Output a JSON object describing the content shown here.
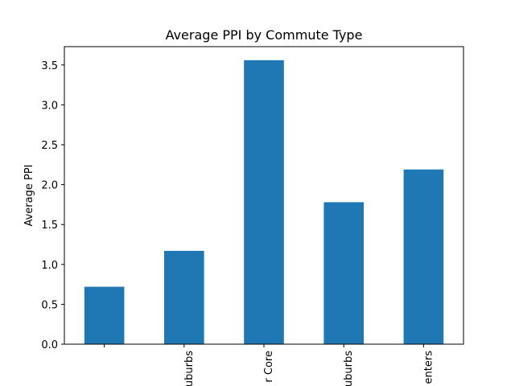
{
  "chart_data": {
    "type": "bar",
    "title": "Average PPI by Commute Type",
    "xlabel": "",
    "ylabel": "Average PPI",
    "categories": [
      "",
      "uburbs",
      "r Core",
      "uburbs",
      "enters"
    ],
    "values": [
      0.72,
      1.17,
      3.56,
      1.78,
      2.19
    ],
    "ylim": [
      0,
      3.73
    ],
    "yticks": [
      0.0,
      0.5,
      1.0,
      1.5,
      2.0,
      2.5,
      3.0,
      3.5
    ],
    "ytick_labels": [
      "0.0",
      "0.5",
      "1.0",
      "1.5",
      "2.0",
      "2.5",
      "3.0",
      "3.5"
    ],
    "bar_color": "#1f77b4",
    "grid": false,
    "legend": "none"
  }
}
